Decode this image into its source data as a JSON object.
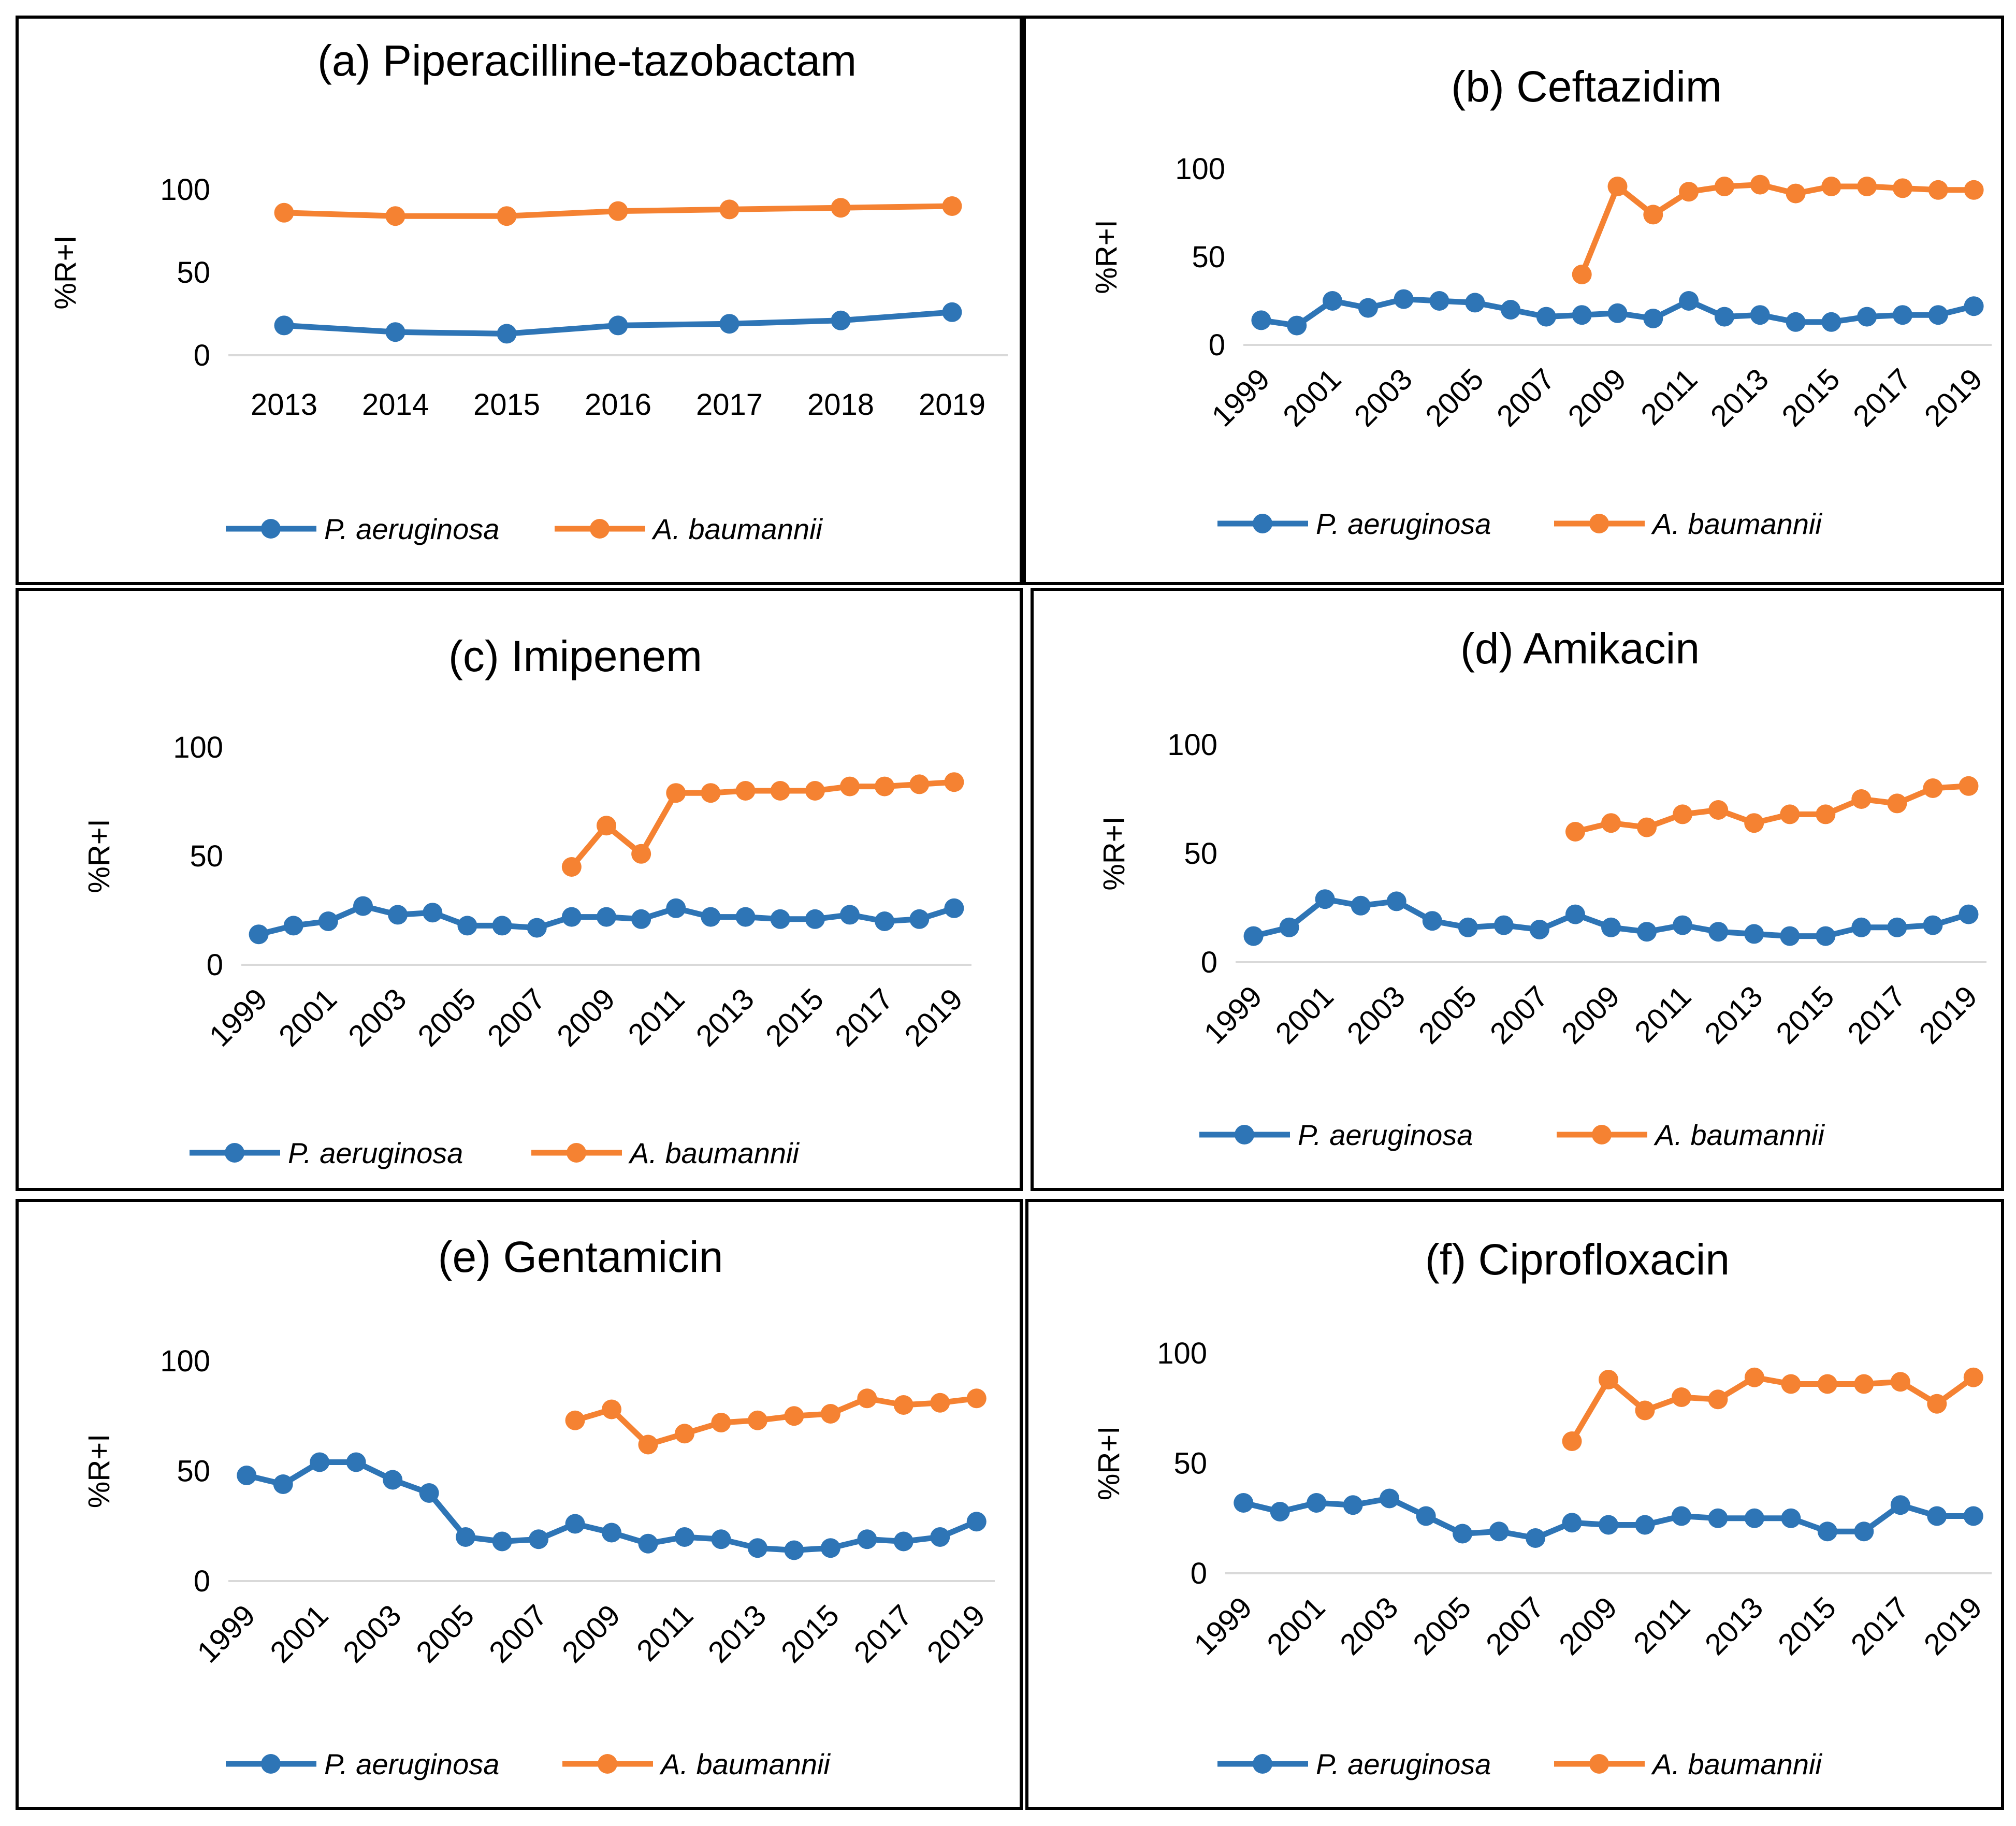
{
  "figure": {
    "colors": {
      "pa": "#2E75B6",
      "ab": "#F58232",
      "grid": "#d9d9d9",
      "text": "#000000"
    },
    "series_names": [
      "P. aeruginosa",
      "A. baumannii"
    ]
  },
  "chart_data": [
    {
      "type": "line",
      "title": "(a) Piperacilline-tazobactam",
      "ylabel": "%R+I",
      "ylim": [
        0,
        120
      ],
      "yticks": [
        0,
        50,
        100
      ],
      "categories": [
        "2013",
        "2014",
        "2015",
        "2016",
        "2017",
        "2018",
        "2019"
      ],
      "xtick_labels": [
        "2013",
        "2014",
        "2015",
        "2016",
        "2017",
        "2018",
        "2019"
      ],
      "series": [
        {
          "name": "P. aeruginosa",
          "values": [
            18,
            14,
            13,
            18,
            19,
            21,
            26
          ]
        },
        {
          "name": "A. baumannii",
          "values": [
            86,
            84,
            84,
            87,
            88,
            89,
            90
          ]
        }
      ]
    },
    {
      "type": "line",
      "title": "(b) Ceftazidim",
      "ylabel": "%R+I",
      "ylim": [
        0,
        120
      ],
      "yticks": [
        0,
        50,
        100
      ],
      "categories": [
        "1999",
        "2000",
        "2001",
        "2002",
        "2003",
        "2004",
        "2005",
        "2006",
        "2007",
        "2008",
        "2009",
        "2010",
        "2011",
        "2012",
        "2013",
        "2014",
        "2015",
        "2016",
        "2017",
        "2018",
        "2019"
      ],
      "xtick_labels": [
        "1999",
        "2001",
        "2003",
        "2005",
        "2007",
        "2009",
        "2011",
        "2013",
        "2015",
        "2017",
        "2019"
      ],
      "series": [
        {
          "name": "P. aeruginosa",
          "values": [
            14,
            11,
            25,
            21,
            26,
            25,
            24,
            20,
            16,
            17,
            18,
            15,
            25,
            16,
            17,
            13,
            13,
            16,
            17,
            17,
            22
          ]
        },
        {
          "name": "A. baumannii",
          "values": [
            null,
            null,
            null,
            null,
            null,
            null,
            null,
            null,
            null,
            40,
            90,
            74,
            87,
            90,
            91,
            86,
            90,
            90,
            89,
            88,
            88
          ]
        }
      ]
    },
    {
      "type": "line",
      "title": "(c) Imipenem",
      "ylabel": "%R+I",
      "ylim": [
        0,
        120
      ],
      "yticks": [
        0,
        50,
        100
      ],
      "categories": [
        "1999",
        "2000",
        "2001",
        "2002",
        "2003",
        "2004",
        "2005",
        "2006",
        "2007",
        "2008",
        "2009",
        "2010",
        "2011",
        "2012",
        "2013",
        "2014",
        "2015",
        "2016",
        "2017",
        "2018",
        "2019"
      ],
      "xtick_labels": [
        "1999",
        "2001",
        "2003",
        "2005",
        "2007",
        "2009",
        "2011",
        "2013",
        "2015",
        "2017",
        "2019"
      ],
      "series": [
        {
          "name": "P. aeruginosa",
          "values": [
            14,
            18,
            20,
            27,
            23,
            24,
            18,
            18,
            17,
            22,
            22,
            21,
            26,
            22,
            22,
            21,
            21,
            23,
            20,
            21,
            26
          ]
        },
        {
          "name": "A. baumannii",
          "values": [
            null,
            null,
            null,
            null,
            null,
            null,
            null,
            null,
            null,
            45,
            64,
            51,
            79,
            79,
            80,
            80,
            80,
            82,
            82,
            83,
            84
          ]
        }
      ]
    },
    {
      "type": "line",
      "title": "(d) Amikacin",
      "ylabel": "%R+I",
      "ylim": [
        0,
        120
      ],
      "yticks": [
        0,
        50,
        100
      ],
      "categories": [
        "1999",
        "2000",
        "2001",
        "2002",
        "2003",
        "2004",
        "2005",
        "2006",
        "2007",
        "2008",
        "2009",
        "2010",
        "2011",
        "2012",
        "2013",
        "2014",
        "2015",
        "2016",
        "2017",
        "2018",
        "2019"
      ],
      "xtick_labels": [
        "1999",
        "2001",
        "2003",
        "2005",
        "2007",
        "2009",
        "2011",
        "2013",
        "2015",
        "2017",
        "2019"
      ],
      "series": [
        {
          "name": "P. aeruginosa",
          "values": [
            12,
            16,
            29,
            26,
            28,
            19,
            16,
            17,
            15,
            22,
            16,
            14,
            17,
            14,
            13,
            12,
            12,
            16,
            16,
            17,
            22
          ]
        },
        {
          "name": "A. baumannii",
          "values": [
            null,
            null,
            null,
            null,
            null,
            null,
            null,
            null,
            null,
            60,
            64,
            62,
            68,
            70,
            64,
            68,
            68,
            75,
            73,
            80,
            81
          ]
        }
      ]
    },
    {
      "type": "line",
      "title": "(e) Gentamicin",
      "ylabel": "%R+I",
      "ylim": [
        0,
        120
      ],
      "yticks": [
        0,
        50,
        100
      ],
      "categories": [
        "1999",
        "2000",
        "2001",
        "2002",
        "2003",
        "2004",
        "2005",
        "2006",
        "2007",
        "2008",
        "2009",
        "2010",
        "2011",
        "2012",
        "2013",
        "2014",
        "2015",
        "2016",
        "2017",
        "2018",
        "2019"
      ],
      "xtick_labels": [
        "1999",
        "2001",
        "2003",
        "2005",
        "2007",
        "2009",
        "2011",
        "2013",
        "2015",
        "2017",
        "2019"
      ],
      "series": [
        {
          "name": "P. aeruginosa",
          "values": [
            48,
            44,
            54,
            54,
            46,
            40,
            20,
            18,
            19,
            26,
            22,
            17,
            20,
            19,
            15,
            14,
            15,
            19,
            18,
            20,
            27
          ]
        },
        {
          "name": "A. baumannii",
          "values": [
            null,
            null,
            null,
            null,
            null,
            null,
            null,
            null,
            null,
            73,
            78,
            62,
            67,
            72,
            73,
            75,
            76,
            83,
            80,
            81,
            83
          ]
        }
      ]
    },
    {
      "type": "line",
      "title": "(f) Ciprofloxacin",
      "ylabel": "%R+I",
      "ylim": [
        0,
        120
      ],
      "yticks": [
        0,
        50,
        100
      ],
      "categories": [
        "1999",
        "2000",
        "2001",
        "2002",
        "2003",
        "2004",
        "2005",
        "2006",
        "2007",
        "2008",
        "2009",
        "2010",
        "2011",
        "2012",
        "2013",
        "2014",
        "2015",
        "2016",
        "2017",
        "2018",
        "2019"
      ],
      "xtick_labels": [
        "1999",
        "2001",
        "2003",
        "2005",
        "2007",
        "2009",
        "2011",
        "2013",
        "2015",
        "2017",
        "2019"
      ],
      "series": [
        {
          "name": "P. aeruginosa",
          "values": [
            32,
            28,
            32,
            31,
            34,
            26,
            18,
            19,
            16,
            23,
            22,
            22,
            26,
            25,
            25,
            25,
            19,
            19,
            31,
            26,
            26
          ]
        },
        {
          "name": "A. baumannii",
          "values": [
            null,
            null,
            null,
            null,
            null,
            null,
            null,
            null,
            null,
            60,
            88,
            74,
            80,
            79,
            89,
            86,
            86,
            86,
            87,
            77,
            89
          ]
        }
      ]
    }
  ]
}
